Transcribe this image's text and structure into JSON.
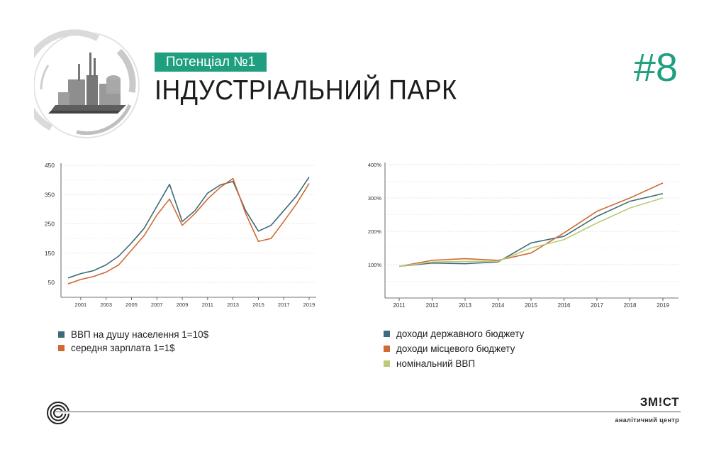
{
  "header": {
    "tag": "Потенціал №1",
    "title": "ІНДУСТРІАЛЬНИЙ ПАРК",
    "number": "#8"
  },
  "footer": {
    "brand": "ЗМ!СТ",
    "subtitle": "аналітичний центр"
  },
  "colors": {
    "accent": "#1f9f80",
    "series_teal": "#3f6b78",
    "series_orange": "#d06a35",
    "series_green": "#b9cc78"
  },
  "chart_data": [
    {
      "type": "line",
      "x": [
        2000,
        2001,
        2002,
        2003,
        2004,
        2005,
        2006,
        2007,
        2008,
        2009,
        2010,
        2011,
        2012,
        2013,
        2014,
        2015,
        2016,
        2017,
        2018,
        2019
      ],
      "x_tick_labels": [
        "2001",
        "2003",
        "2005",
        "2007",
        "2009",
        "2011",
        "2013",
        "2015",
        "2017",
        "2019"
      ],
      "y_tick_labels": [
        "450",
        "350",
        "250",
        "150",
        "50"
      ],
      "ylim": [
        0,
        450
      ],
      "grid": true,
      "legend_position": "bottom-left",
      "series": [
        {
          "name": "ВВП на душу населення 1=10$",
          "color": "#3f6b78",
          "values": [
            65,
            80,
            90,
            110,
            140,
            185,
            235,
            310,
            385,
            258,
            295,
            355,
            383,
            395,
            295,
            225,
            245,
            295,
            345,
            410
          ]
        },
        {
          "name": "середня зарплата 1=1$",
          "color": "#d06a35",
          "values": [
            45,
            60,
            70,
            85,
            110,
            160,
            210,
            280,
            335,
            245,
            285,
            335,
            375,
            405,
            285,
            190,
            200,
            258,
            318,
            388
          ]
        }
      ]
    },
    {
      "type": "line",
      "x": [
        2011,
        2012,
        2013,
        2014,
        2015,
        2016,
        2017,
        2018,
        2019
      ],
      "x_tick_labels": [
        "2011",
        "2012",
        "2013",
        "2014",
        "2015",
        "2016",
        "2017",
        "2018",
        "2019"
      ],
      "y_tick_labels": [
        "400%",
        "300%",
        "200%",
        "100%"
      ],
      "ylim": [
        0,
        400
      ],
      "grid": true,
      "legend_position": "bottom-left",
      "series": [
        {
          "name": "доходи державного бюджету",
          "color": "#3f6b78",
          "values": [
            95,
            105,
            103,
            108,
            165,
            185,
            245,
            290,
            313
          ]
        },
        {
          "name": "доходи місцевого бюджету",
          "color": "#d06a35",
          "values": [
            95,
            113,
            118,
            113,
            135,
            195,
            260,
            300,
            345
          ]
        },
        {
          "name": "номінальний ВВП",
          "color": "#b9cc78",
          "values": [
            95,
            108,
            110,
            110,
            150,
            175,
            225,
            270,
            300
          ]
        }
      ]
    }
  ]
}
